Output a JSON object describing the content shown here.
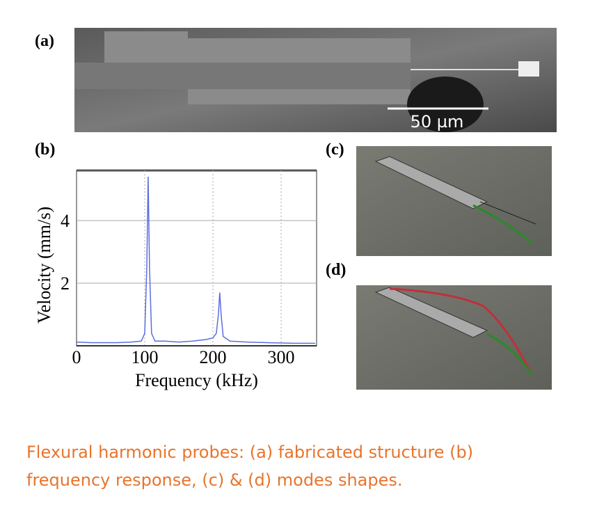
{
  "panels": {
    "a": "(a)",
    "b": "(b)",
    "c": "(c)",
    "d": "(d)"
  },
  "scale_bar": "50 µm",
  "chart_data": {
    "type": "line",
    "xlabel": "Frequency (kHz)",
    "ylabel": "Velocity (mm/s)",
    "x": [
      0,
      20,
      40,
      60,
      80,
      95,
      100,
      103,
      105,
      107,
      110,
      115,
      130,
      150,
      170,
      190,
      200,
      205,
      208,
      210,
      212,
      215,
      225,
      250,
      280,
      320,
      350
    ],
    "series": [
      {
        "name": "Velocity",
        "color": "#5b6ee1",
        "values": [
          0.12,
          0.1,
          0.1,
          0.1,
          0.12,
          0.15,
          0.4,
          2.5,
          5.4,
          2.5,
          0.4,
          0.15,
          0.15,
          0.12,
          0.15,
          0.2,
          0.25,
          0.4,
          1.0,
          1.7,
          1.0,
          0.3,
          0.15,
          0.12,
          0.1,
          0.08,
          0.08
        ]
      }
    ],
    "xlim": [
      0,
      352
    ],
    "ylim": [
      0,
      5.6
    ],
    "xticks": [
      0,
      100,
      200,
      300
    ],
    "yticks": [
      2,
      4
    ],
    "grid": true
  },
  "caption_lines": [
    "Flexural harmonic probes: (a) fabricated structure (b)",
    "frequency response, (c) & (d) modes shapes."
  ]
}
